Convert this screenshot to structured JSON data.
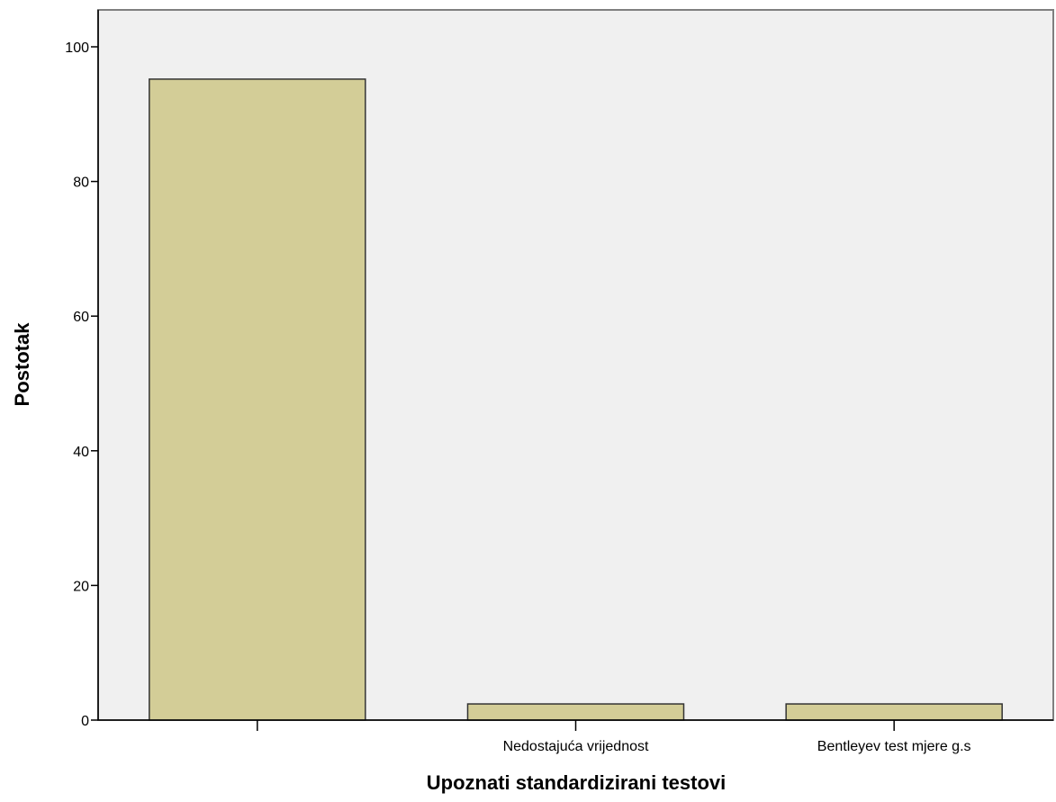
{
  "chart_data": {
    "type": "bar",
    "categories": [
      "",
      "Nedostajuća vrijednost",
      "Bentleyev test mjere g.s"
    ],
    "values": [
      95.2,
      2.4,
      2.4
    ],
    "xlabel": "Upoznati standardizirani testovi",
    "ylabel": "Postotak",
    "ylim": [
      0,
      105
    ],
    "yticks": [
      0,
      20,
      40,
      60,
      80,
      100
    ],
    "grid": false,
    "legend": "none"
  },
  "colors": {
    "plot_background": "#f0f0f0",
    "bar_fill": "#d3cd97",
    "bar_stroke": "#333333",
    "axis": "#000000",
    "frame": "#7f7f7f"
  }
}
